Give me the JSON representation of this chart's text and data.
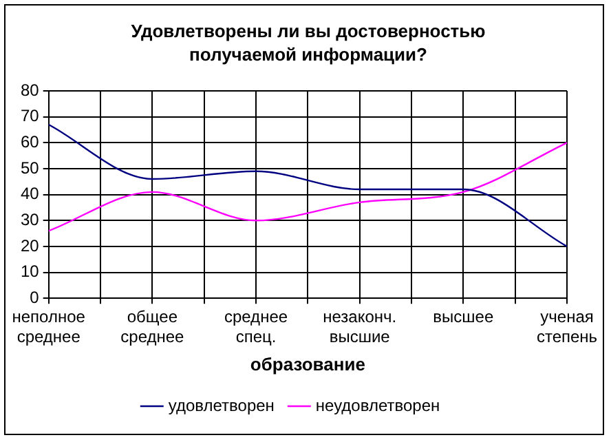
{
  "chart_data": {
    "type": "line",
    "title": "Удовлетворены ли вы достоверностью получаемой информации?",
    "xlabel": "образование",
    "categories": [
      "неполное среднее",
      "общее среднее",
      "среднее спец.",
      "незаконч. высшие",
      "высшее",
      "ученая степень"
    ],
    "series": [
      {
        "name": "удовлетворен",
        "color": "#000080",
        "values": [
          67,
          46,
          49,
          42,
          42,
          20
        ]
      },
      {
        "name": "неудовлетворен",
        "color": "#ff00ff",
        "values": [
          26,
          41,
          30,
          37,
          41,
          60
        ]
      }
    ],
    "ylim": [
      0,
      80
    ],
    "yticks": [
      0,
      10,
      20,
      30,
      40,
      50,
      60,
      70,
      80
    ],
    "grid": true,
    "legend": "bottom",
    "marker": "none",
    "line_style": "solid"
  }
}
